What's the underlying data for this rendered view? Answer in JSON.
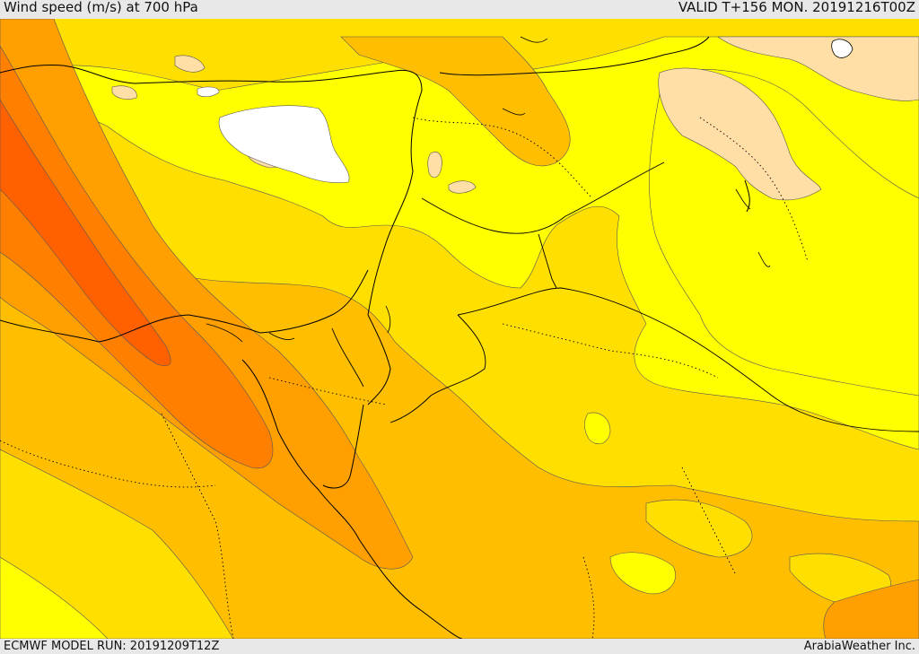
{
  "header": {
    "title": "Wind speed (m/s) at 700 hPa",
    "valid": "VALID T+156 MON. 20191216T00Z"
  },
  "footer": {
    "model_run": "ECMWF MODEL RUN: 20191209T12Z",
    "credit": "ArabiaWeather Inc."
  },
  "colors": {
    "lightest": "#ffffff",
    "pale": "#ffdfa6",
    "yellow": "#ffff00",
    "gold": "#ffdf00",
    "amber": "#ffbf00",
    "orange": "#ff9f00",
    "deep_orange": "#ff7f00",
    "red_orange": "#ff6000",
    "border": "#000000"
  }
}
